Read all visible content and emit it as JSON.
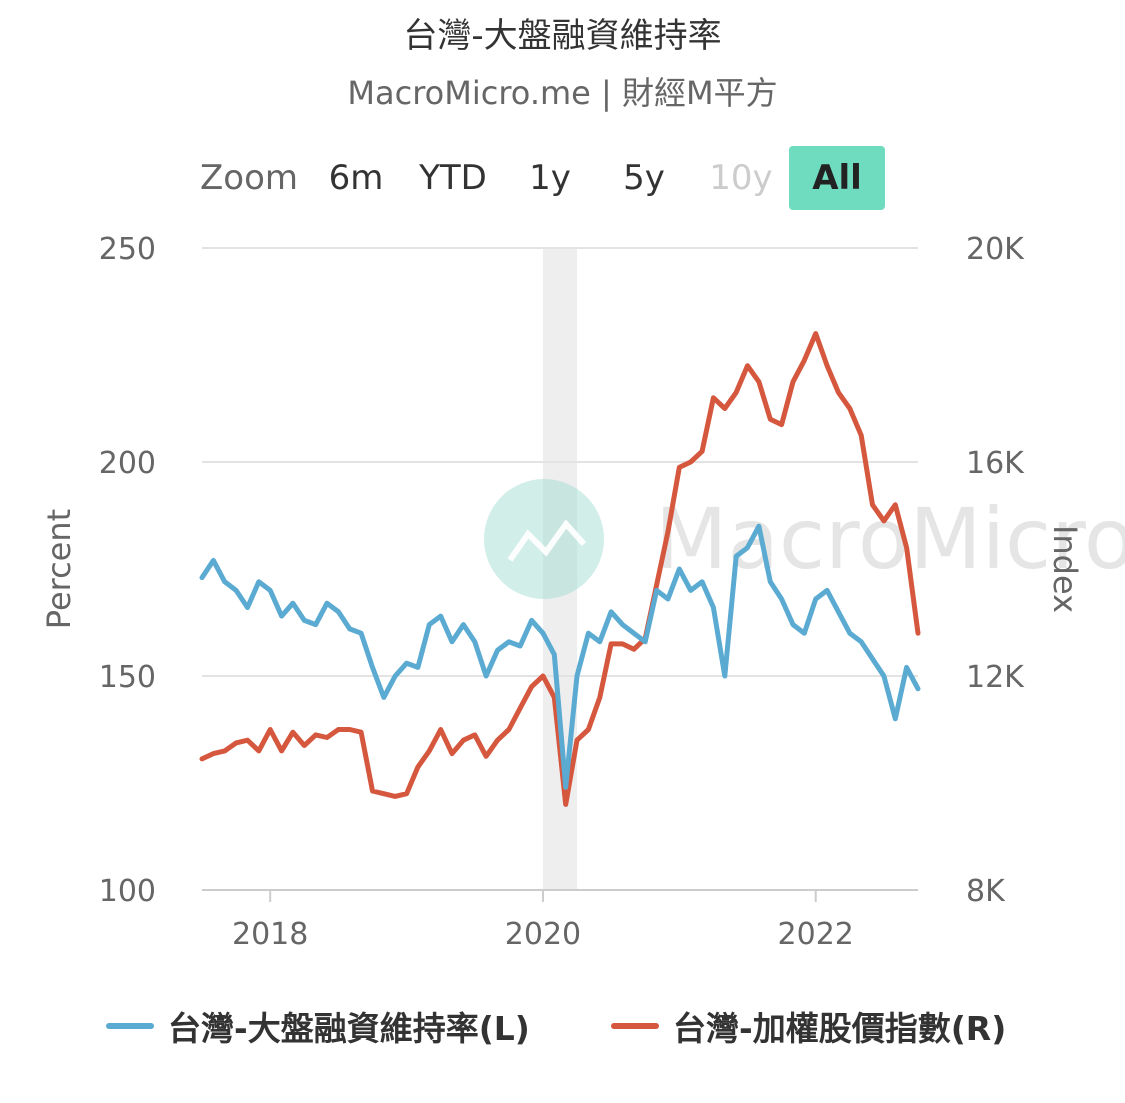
{
  "header": {
    "title": "台灣-大盤融資維持率",
    "subtitle": "MacroMicro.me | 財經M平方"
  },
  "range_selector": {
    "zoom_label": "Zoom",
    "buttons": [
      {
        "label": "6m",
        "state": "normal"
      },
      {
        "label": "YTD",
        "state": "normal"
      },
      {
        "label": "1y",
        "state": "normal"
      },
      {
        "label": "5y",
        "state": "normal"
      },
      {
        "label": "10y",
        "state": "disabled"
      },
      {
        "label": "All",
        "state": "active"
      }
    ]
  },
  "watermark": {
    "text": "MacroMicro"
  },
  "legend": {
    "items": [
      "台灣-大盤融資維持率(L)",
      "台灣-加權股價指數(R)"
    ]
  },
  "colors": {
    "margin": "#5aaad2",
    "taiex": "#d5573e",
    "grid": "#e3e3e3",
    "band": "#eeeeee",
    "accent": "#6fdcbf"
  },
  "chart_data": {
    "type": "line",
    "xlabel": "",
    "x_ticks": [
      "2018",
      "2020",
      "2022"
    ],
    "xlim": [
      "2017-07",
      "2022-10"
    ],
    "recession_band": [
      "2020-01",
      "2020-04"
    ],
    "y_left": {
      "label": "Percent",
      "ylim": [
        100,
        250
      ],
      "ticks": [
        "100",
        "150",
        "200",
        "250"
      ]
    },
    "y_right": {
      "label": "Index",
      "ylim": [
        8000,
        20000
      ],
      "ticks": [
        "8K",
        "12K",
        "16K",
        "20K"
      ]
    },
    "x": [
      "2017-07",
      "2017-08",
      "2017-09",
      "2017-10",
      "2017-11",
      "2017-12",
      "2018-01",
      "2018-02",
      "2018-03",
      "2018-04",
      "2018-05",
      "2018-06",
      "2018-07",
      "2018-08",
      "2018-09",
      "2018-10",
      "2018-11",
      "2018-12",
      "2019-01",
      "2019-02",
      "2019-03",
      "2019-04",
      "2019-05",
      "2019-06",
      "2019-07",
      "2019-08",
      "2019-09",
      "2019-10",
      "2019-11",
      "2019-12",
      "2020-01",
      "2020-02",
      "2020-03",
      "2020-04",
      "2020-05",
      "2020-06",
      "2020-07",
      "2020-08",
      "2020-09",
      "2020-10",
      "2020-11",
      "2020-12",
      "2021-01",
      "2021-02",
      "2021-03",
      "2021-04",
      "2021-05",
      "2021-06",
      "2021-07",
      "2021-08",
      "2021-09",
      "2021-10",
      "2021-11",
      "2021-12",
      "2022-01",
      "2022-02",
      "2022-03",
      "2022-04",
      "2022-05",
      "2022-06",
      "2022-07",
      "2022-08",
      "2022-09",
      "2022-10"
    ],
    "series": [
      {
        "name": "台灣-大盤融資維持率(L)",
        "axis": "left",
        "values": [
          173,
          177,
          172,
          170,
          166,
          172,
          170,
          164,
          167,
          163,
          162,
          167,
          165,
          161,
          160,
          152,
          145,
          150,
          153,
          152,
          162,
          164,
          158,
          162,
          158,
          150,
          156,
          158,
          157,
          163,
          160,
          155,
          124,
          150,
          160,
          158,
          165,
          162,
          160,
          158,
          170,
          168,
          175,
          170,
          172,
          166,
          150,
          178,
          180,
          185,
          172,
          168,
          162,
          160,
          168,
          170,
          165,
          160,
          158,
          154,
          150,
          140,
          152,
          147
        ]
      },
      {
        "name": "台灣-加權股價指數(R)",
        "axis": "right",
        "values": [
          10450,
          10550,
          10600,
          10750,
          10800,
          10600,
          11000,
          10600,
          10950,
          10700,
          10900,
          10850,
          11000,
          11000,
          10950,
          9850,
          9800,
          9750,
          9800,
          10300,
          10600,
          11000,
          10550,
          10800,
          10900,
          10500,
          10800,
          11000,
          11400,
          11800,
          12000,
          11600,
          9600,
          10800,
          11000,
          11600,
          12600,
          12600,
          12500,
          12700,
          13700,
          14700,
          15900,
          16000,
          16200,
          17200,
          17000,
          17300,
          17800,
          17500,
          16800,
          16700,
          17500,
          17900,
          18400,
          17800,
          17300,
          17000,
          16500,
          15200,
          14900,
          15200,
          14400,
          12800
        ]
      }
    ]
  }
}
